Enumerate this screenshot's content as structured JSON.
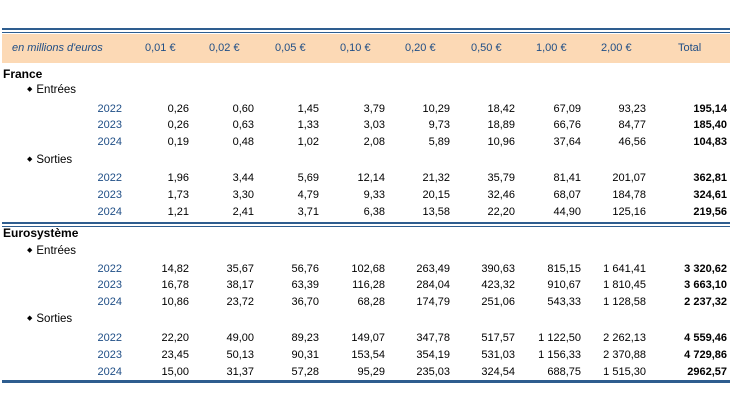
{
  "header": {
    "unit_label": "en millions d'euros",
    "columns": [
      "0,01 €",
      "0,02 €",
      "0,05 €",
      "0,10 €",
      "0,20 €",
      "0,50 €",
      "1,00 €",
      "2,00 €",
      "Total"
    ]
  },
  "sections": [
    {
      "title": "France",
      "groups": [
        {
          "label": "Entrées",
          "rows": [
            {
              "year": "2022",
              "values": [
                "0,26",
                "0,60",
                "1,45",
                "3,79",
                "10,29",
                "18,42",
                "67,09",
                "93,23"
              ],
              "total": "195,14"
            },
            {
              "year": "2023",
              "values": [
                "0,26",
                "0,63",
                "1,33",
                "3,03",
                "9,73",
                "18,89",
                "66,76",
                "84,77"
              ],
              "total": "185,40"
            },
            {
              "year": "2024",
              "values": [
                "0,19",
                "0,48",
                "1,02",
                "2,08",
                "5,89",
                "10,96",
                "37,64",
                "46,56"
              ],
              "total": "104,83"
            }
          ]
        },
        {
          "label": "Sorties",
          "rows": [
            {
              "year": "2022",
              "values": [
                "1,96",
                "3,44",
                "5,69",
                "12,14",
                "21,32",
                "35,79",
                "81,41",
                "201,07"
              ],
              "total": "362,81"
            },
            {
              "year": "2023",
              "values": [
                "1,73",
                "3,30",
                "4,79",
                "9,33",
                "20,15",
                "32,46",
                "68,07",
                "184,78"
              ],
              "total": "324,61"
            },
            {
              "year": "2024",
              "values": [
                "1,21",
                "2,41",
                "3,71",
                "6,38",
                "13,58",
                "22,20",
                "44,90",
                "125,16"
              ],
              "total": "219,56"
            }
          ]
        }
      ]
    },
    {
      "title": "Eurosystème",
      "groups": [
        {
          "label": "Entrées",
          "rows": [
            {
              "year": "2022",
              "values": [
                "14,82",
                "35,67",
                "56,76",
                "102,68",
                "263,49",
                "390,63",
                "815,15",
                "1 641,41"
              ],
              "total": "3 320,62"
            },
            {
              "year": "2023",
              "values": [
                "16,78",
                "38,17",
                "63,39",
                "116,28",
                "284,04",
                "423,32",
                "910,67",
                "1 810,45"
              ],
              "total": "3 663,10"
            },
            {
              "year": "2024",
              "values": [
                "10,86",
                "23,72",
                "36,70",
                "68,28",
                "174,79",
                "251,06",
                "543,33",
                "1 128,58"
              ],
              "total": "2 237,32"
            }
          ]
        },
        {
          "label": "Sorties",
          "rows": [
            {
              "year": "2022",
              "values": [
                "22,20",
                "49,00",
                "89,23",
                "149,07",
                "347,78",
                "517,57",
                "1 122,50",
                "2 262,13"
              ],
              "total": "4 559,46"
            },
            {
              "year": "2023",
              "values": [
                "23,45",
                "50,13",
                "90,31",
                "153,54",
                "354,19",
                "531,03",
                "1 156,33",
                "2 370,88"
              ],
              "total": "4 729,86"
            },
            {
              "year": "2024",
              "values": [
                "15,00",
                "31,37",
                "57,28",
                "95,29",
                "235,03",
                "324,54",
                "688,75",
                "1 515,30"
              ],
              "total": "2962,57"
            }
          ]
        }
      ]
    }
  ]
}
